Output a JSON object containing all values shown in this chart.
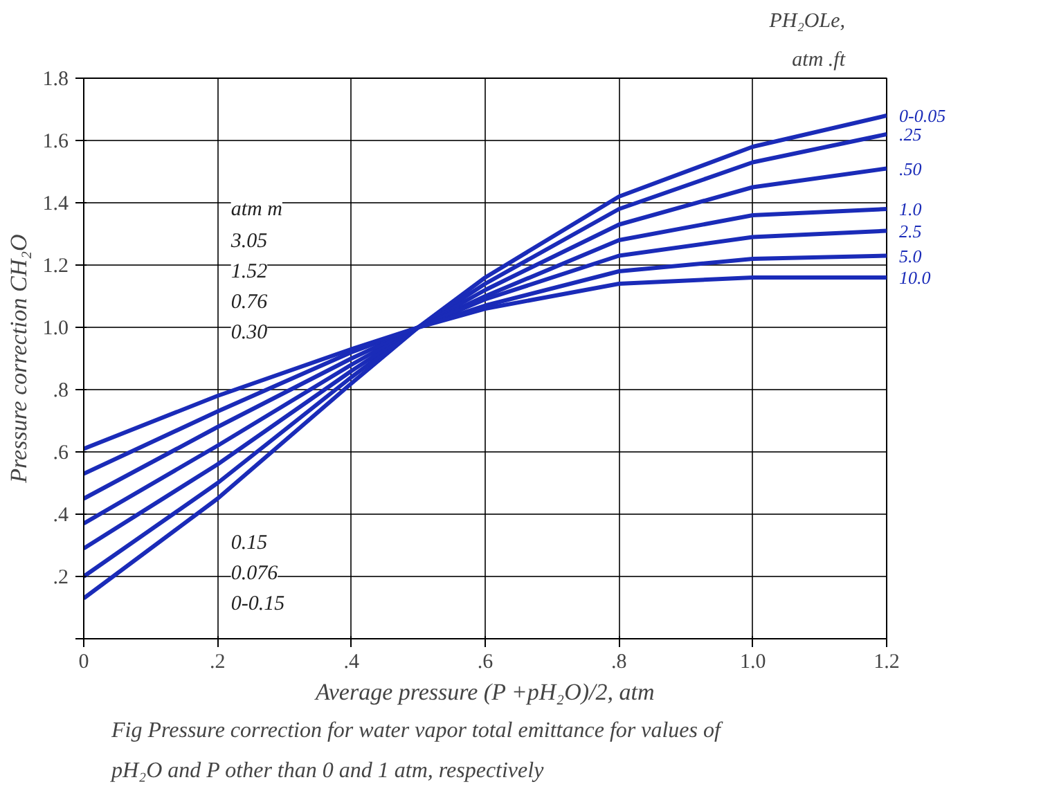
{
  "chart_data": {
    "type": "line",
    "xlabel": "Average pressure (P +pH₂O)/2, atm",
    "ylabel": "Pressure correction CH₂O",
    "x": [
      0,
      0.2,
      0.4,
      0.5,
      0.6,
      0.8,
      1.0,
      1.2
    ],
    "series": [
      {
        "name": "0-0.05",
        "color": "#1a2bb8",
        "values": [
          0.13,
          0.45,
          0.82,
          1.0,
          1.16,
          1.42,
          1.58,
          1.68
        ]
      },
      {
        "name": ".25",
        "color": "#1a2bb8",
        "values": [
          0.2,
          0.5,
          0.84,
          1.0,
          1.14,
          1.38,
          1.53,
          1.62
        ]
      },
      {
        "name": ".50",
        "color": "#1a2bb8",
        "values": [
          0.29,
          0.56,
          0.86,
          1.0,
          1.12,
          1.33,
          1.45,
          1.51
        ]
      },
      {
        "name": "1.0",
        "color": "#1a2bb8",
        "values": [
          0.37,
          0.62,
          0.88,
          1.0,
          1.1,
          1.28,
          1.36,
          1.38
        ]
      },
      {
        "name": "2.5",
        "color": "#1a2bb8",
        "values": [
          0.45,
          0.68,
          0.9,
          1.0,
          1.09,
          1.23,
          1.29,
          1.31
        ]
      },
      {
        "name": "5.0",
        "color": "#1a2bb8",
        "values": [
          0.53,
          0.73,
          0.92,
          1.0,
          1.07,
          1.18,
          1.22,
          1.23
        ]
      },
      {
        "name": "10.0",
        "color": "#1a2bb8",
        "values": [
          0.61,
          0.78,
          0.93,
          1.0,
          1.06,
          1.14,
          1.16,
          1.16
        ]
      }
    ],
    "xlim": [
      0,
      1.2
    ],
    "ylim": [
      0,
      1.8
    ],
    "xticks": [
      0,
      {
        "value": 0.2,
        "label": ".2"
      },
      {
        "value": 0.4,
        "label": ".4"
      },
      {
        "value": 0.6,
        "label": ".6"
      },
      {
        "value": 0.8,
        "label": ".8"
      },
      {
        "value": 1.0,
        "label": "1.0"
      },
      {
        "value": 1.2,
        "label": "1.2"
      }
    ],
    "yticks": [
      {
        "value": 0,
        "label": null
      },
      {
        "value": 0.2,
        "label": ".2"
      },
      {
        "value": 0.4,
        "label": ".4"
      },
      {
        "value": 0.6,
        "label": ".6"
      },
      {
        "value": 0.8,
        "label": ".8"
      },
      {
        "value": 1.0,
        "label": "1.0"
      },
      {
        "value": 1.2,
        "label": "1.2"
      },
      {
        "value": 1.4,
        "label": "1.4"
      },
      {
        "value": 1.6,
        "label": "1.6"
      },
      {
        "value": 1.8,
        "label": "1.8"
      }
    ],
    "grid": true,
    "line_style": "solid",
    "annotations": [
      "PH₂OLe,",
      "atm .ft",
      "atm m",
      "3.05",
      "1.52",
      "0.76",
      "0.30",
      "0.15",
      "0.076",
      "0-0.15",
      "Fig Pressure correction for water vapor total emittance for values of pH₂O and P other than 0 and 1 atm, respectively"
    ]
  }
}
